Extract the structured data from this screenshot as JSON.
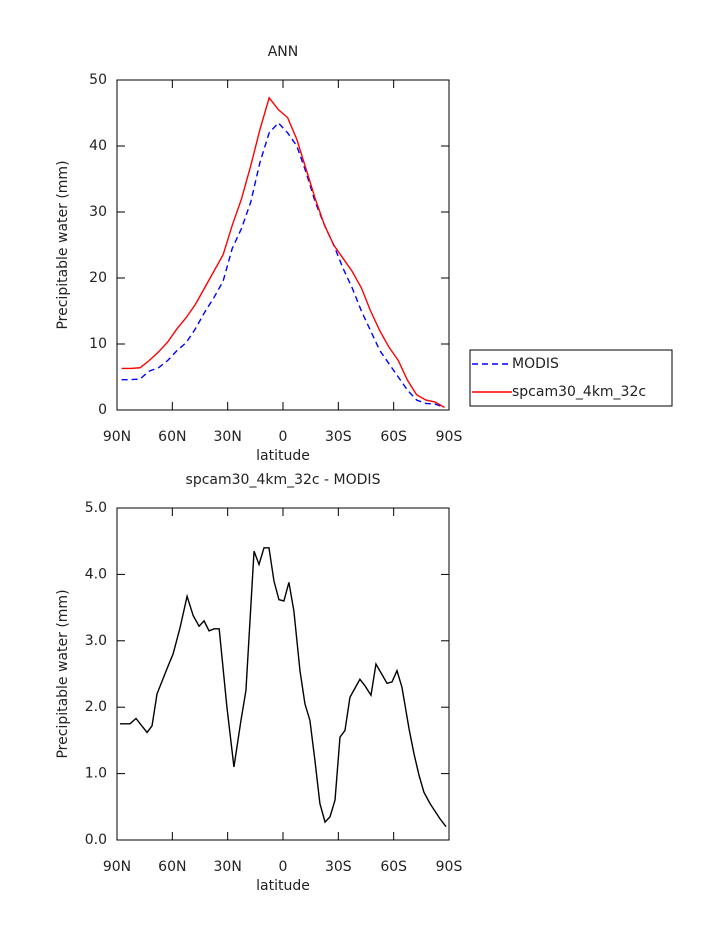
{
  "chart_data": [
    {
      "type": "line",
      "title": "ANN",
      "xlabel": "latitude",
      "ylabel": "Precipitable water (mm)",
      "x": [
        87.5,
        82.5,
        77.5,
        72.5,
        67.5,
        62.5,
        57.5,
        52.5,
        47.5,
        42.5,
        37.5,
        32.5,
        27.5,
        22.5,
        17.5,
        12.5,
        7.5,
        2.5,
        -2.5,
        -7.5,
        -12.5,
        -17.5,
        -22.5,
        -27.5,
        -32.5,
        -37.5,
        -42.5,
        -47.5,
        -52.5,
        -57.5,
        -62.5,
        -67.5,
        -72.5,
        -77.5,
        -82.5,
        -87.5
      ],
      "series": [
        {
          "name": "MODIS",
          "color": "#0000ff",
          "linestyle": "dashed",
          "values": [
            4.6,
            4.6,
            4.7,
            5.9,
            6.4,
            7.5,
            9.0,
            10.2,
            12.3,
            14.8,
            17.0,
            19.5,
            24.5,
            27.5,
            31.5,
            37.5,
            42.0,
            43.5,
            42.0,
            40.0,
            36.0,
            31.5,
            28.0,
            25.0,
            21.5,
            18.5,
            15.0,
            12.0,
            9.0,
            7.0,
            5.0,
            3.0,
            1.5,
            1.0,
            0.9,
            0.4
          ]
        },
        {
          "name": "spcam30_4km_32c",
          "color": "#ff0000",
          "linestyle": "solid",
          "values": [
            6.3,
            6.3,
            6.4,
            7.5,
            8.8,
            10.3,
            12.3,
            14.0,
            16.0,
            18.5,
            21.0,
            23.5,
            28.0,
            32.0,
            37.0,
            42.5,
            47.3,
            45.5,
            44.3,
            41.0,
            36.5,
            32.0,
            28.0,
            25.0,
            23.0,
            21.0,
            18.5,
            15.0,
            12.0,
            9.5,
            7.5,
            4.5,
            2.3,
            1.5,
            1.2,
            0.4
          ]
        }
      ],
      "xlim": [
        90,
        -90
      ],
      "xticks": [
        {
          "value": 90,
          "label": "90N"
        },
        {
          "value": 60,
          "label": "60N"
        },
        {
          "value": 30,
          "label": "30N"
        },
        0,
        {
          "value": -30,
          "label": "30S"
        },
        {
          "value": -60,
          "label": "60S"
        },
        {
          "value": -90,
          "label": "90S"
        }
      ],
      "ylim": [
        0,
        50
      ],
      "yticks": [
        0,
        10,
        20,
        30,
        40,
        50
      ],
      "grid": false,
      "legend": "outside right"
    },
    {
      "type": "line",
      "title": "spcam30_4km_32c - MODIS",
      "xlabel": "latitude",
      "ylabel": "Precipitable water (mm)",
      "x": [
        88.4,
        83.0,
        79.7,
        73.7,
        71.0,
        68.3,
        62.3,
        59.6,
        55.8,
        52.0,
        48.7,
        45.5,
        42.8,
        40.1,
        37.3,
        34.6,
        30.4,
        26.6,
        22.8,
        20.1,
        15.7,
        13.0,
        10.3,
        7.6,
        4.9,
        2.2,
        -0.5,
        -3.2,
        -5.9,
        -9.2,
        -11.9,
        -14.6,
        -17.3,
        -20.0,
        -22.8,
        -25.5,
        -28.2,
        -30.9,
        -33.6,
        -36.3,
        -41.7,
        -44.5,
        -47.7,
        -50.4,
        -56.4,
        -59.1,
        -61.8,
        -64.5,
        -68.3,
        -71.0,
        -73.7,
        -76.4,
        -79.7,
        -85.1,
        -88.4
      ],
      "series": [
        {
          "color": "#000000",
          "linestyle": "solid",
          "values": [
            1.75,
            1.75,
            1.83,
            1.62,
            1.72,
            2.2,
            2.62,
            2.8,
            3.2,
            3.67,
            3.38,
            3.22,
            3.3,
            3.15,
            3.18,
            3.18,
            2.0,
            1.1,
            1.8,
            2.25,
            4.35,
            4.15,
            4.4,
            4.4,
            3.9,
            3.62,
            3.6,
            3.88,
            3.45,
            2.55,
            2.05,
            1.8,
            1.2,
            0.55,
            0.27,
            0.35,
            0.6,
            1.55,
            1.65,
            2.15,
            2.42,
            2.32,
            2.18,
            2.65,
            2.36,
            2.38,
            2.55,
            2.3,
            1.68,
            1.3,
            0.98,
            0.72,
            0.55,
            0.32,
            0.2
          ]
        }
      ],
      "xlim": [
        90,
        -90
      ],
      "xticks": [
        {
          "value": 90,
          "label": "90N"
        },
        {
          "value": 60,
          "label": "60N"
        },
        {
          "value": 30,
          "label": "30N"
        },
        0,
        {
          "value": -30,
          "label": "30S"
        },
        {
          "value": -60,
          "label": "60S"
        },
        {
          "value": -90,
          "label": "90S"
        }
      ],
      "ylim": [
        0,
        5
      ],
      "yticks": [
        {
          "value": 0,
          "label": "0.0"
        },
        {
          "value": 1,
          "label": "1.0"
        },
        {
          "value": 2,
          "label": "2.0"
        },
        {
          "value": 3,
          "label": "3.0"
        },
        {
          "value": 4,
          "label": "4.0"
        },
        {
          "value": 5,
          "label": "5.0"
        }
      ],
      "grid": false
    }
  ]
}
